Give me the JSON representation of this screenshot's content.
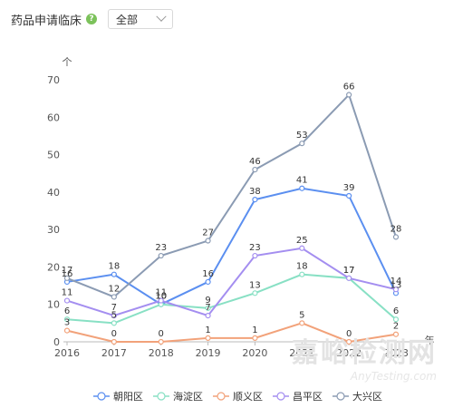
{
  "header": {
    "title": "药品申请临床",
    "help_icon": "question-circle-icon",
    "select_value": "全部"
  },
  "watermark": {
    "line1": "嘉峪检测网",
    "line2": "AnyTesting.com"
  },
  "chart_data": {
    "type": "line",
    "x": [
      "2016",
      "2017",
      "2018",
      "2019",
      "2020",
      "2021",
      "2022",
      "2023"
    ],
    "ylabel": "个",
    "xlabel": "年",
    "ylim": [
      0,
      70
    ],
    "yticks": [
      0,
      10,
      20,
      30,
      40,
      50,
      60,
      70
    ],
    "grid": false,
    "legend_position": "bottom",
    "series": [
      {
        "name": "朝阳区",
        "color": "#5b8ff0",
        "values": [
          16,
          18,
          10,
          16,
          38,
          41,
          39,
          13
        ]
      },
      {
        "name": "海淀区",
        "color": "#88e0c4",
        "values": [
          6,
          5,
          10,
          9,
          13,
          18,
          17,
          6
        ]
      },
      {
        "name": "顺义区",
        "color": "#f2a27a",
        "values": [
          3,
          0,
          0,
          1,
          1,
          5,
          0,
          2
        ]
      },
      {
        "name": "昌平区",
        "color": "#a48ef0",
        "values": [
          11,
          7,
          11,
          7,
          23,
          25,
          17,
          14
        ]
      },
      {
        "name": "大兴区",
        "color": "#8b9bb3",
        "values": [
          17,
          12,
          23,
          27,
          46,
          53,
          66,
          28
        ]
      }
    ]
  }
}
